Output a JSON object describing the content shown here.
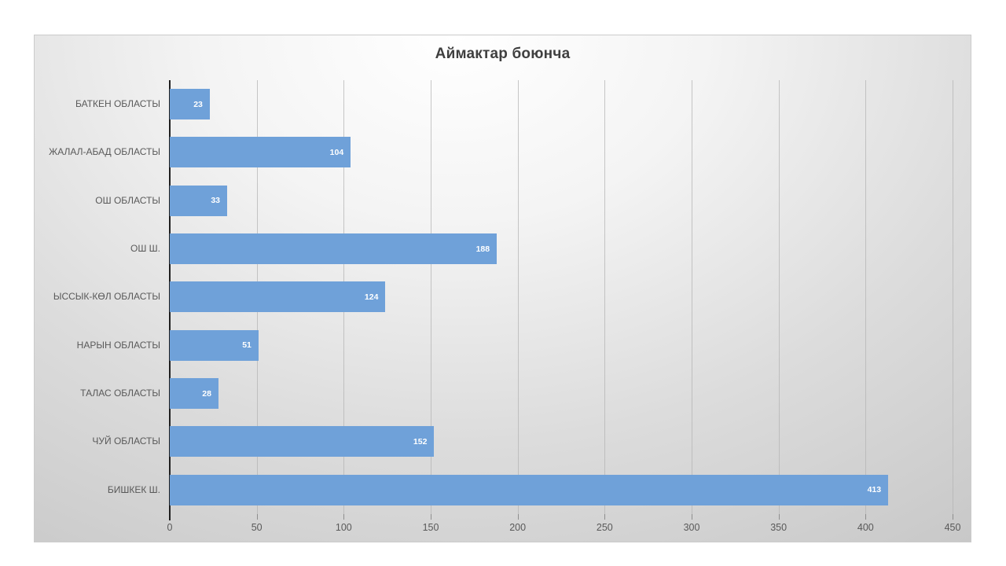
{
  "chart_data": {
    "type": "bar",
    "orientation": "horizontal",
    "title": "Аймактар боюнча",
    "categories": [
      "БАТКЕН ОБЛАСТЫ",
      "ЖАЛАЛ-АБАД ОБЛАСТЫ",
      "ОШ ОБЛАСТЫ",
      "ОШ Ш.",
      "ЫССЫК-КӨЛ ОБЛАСТЫ",
      "НАРЫН ОБЛАСТЫ",
      "ТАЛАС ОБЛАСТЫ",
      "ЧУЙ ОБЛАСТЫ",
      "БИШКЕК Ш."
    ],
    "values": [
      23,
      104,
      33,
      188,
      124,
      51,
      28,
      152,
      413
    ],
    "xlabel": "",
    "ylabel": "",
    "xlim": [
      0,
      450
    ],
    "x_ticks": [
      0,
      50,
      100,
      150,
      200,
      250,
      300,
      350,
      400,
      450
    ],
    "grid": true,
    "legend_position": "none",
    "data_labels": "inside-end",
    "colors": {
      "bar": "#6fa1d9",
      "bar_label": "#ffffff",
      "title": "#3f3f3f",
      "axis_text": "#595959",
      "gridline": "#b4b4b4",
      "axis_line": "#1f1f1f",
      "background_top": "#ffffff",
      "background_bottom": "#c6c6c6"
    }
  }
}
